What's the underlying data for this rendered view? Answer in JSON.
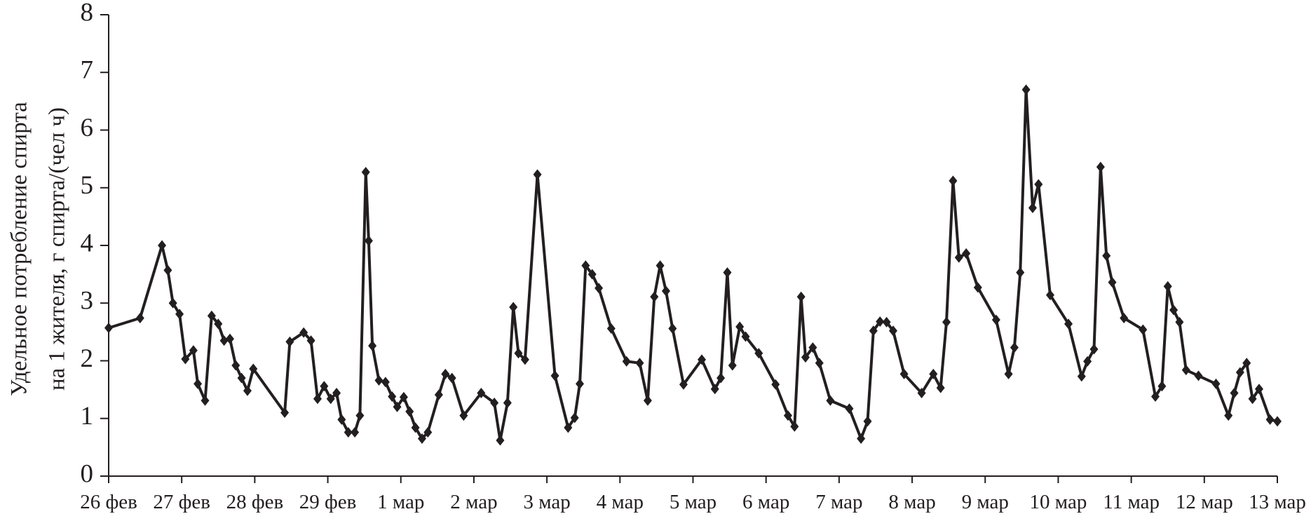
{
  "chart_data": {
    "type": "line",
    "ylabel": [
      "Удельное потребление спирта",
      "на 1 жителя, г спирта/(чел ч)"
    ],
    "xlim": [
      0,
      16
    ],
    "xticks": [
      {
        "value": 0,
        "label": "26 фев"
      },
      {
        "value": 1,
        "label": "27 фев"
      },
      {
        "value": 2,
        "label": "28 фев"
      },
      {
        "value": 3,
        "label": "29 фев"
      },
      {
        "value": 4,
        "label": "1 мар"
      },
      {
        "value": 5,
        "label": "2 мар"
      },
      {
        "value": 6,
        "label": "3 мар"
      },
      {
        "value": 7,
        "label": "4 мар"
      },
      {
        "value": 8,
        "label": "5 мар"
      },
      {
        "value": 9,
        "label": "6 мар"
      },
      {
        "value": 10,
        "label": "7 мар"
      },
      {
        "value": 11,
        "label": "8 мар"
      },
      {
        "value": 12,
        "label": "9 мар"
      },
      {
        "value": 13,
        "label": "10 мар"
      },
      {
        "value": 14,
        "label": "11 мар"
      },
      {
        "value": 15,
        "label": "12 мар"
      },
      {
        "value": 16,
        "label": "13 мар"
      }
    ],
    "ylim": [
      0,
      8
    ],
    "yticks": [
      0,
      1,
      2,
      3,
      4,
      5,
      6,
      7,
      8
    ],
    "series": [
      {
        "color": "#231f20",
        "x": [
          0,
          0.43,
          0.73,
          0.81,
          0.88,
          0.97,
          1.05,
          1.16,
          1.22,
          1.32,
          1.41,
          1.5,
          1.58,
          1.66,
          1.74,
          1.82,
          1.9,
          1.98,
          2.41,
          2.48,
          2.67,
          2.77,
          2.86,
          2.95,
          3.04,
          3.12,
          3.19,
          3.28,
          3.37,
          3.44,
          3.52,
          3.56,
          3.61,
          3.7,
          3.79,
          3.88,
          3.95,
          4.04,
          4.12,
          4.2,
          4.29,
          4.37,
          4.52,
          4.61,
          4.7,
          4.86,
          5.1,
          5.28,
          5.36,
          5.46,
          5.54,
          5.61,
          5.7,
          5.87,
          6.11,
          6.29,
          6.38,
          6.45,
          6.53,
          6.62,
          6.71,
          6.88,
          7.09,
          7.27,
          7.38,
          7.47,
          7.55,
          7.63,
          7.72,
          7.87,
          8.12,
          8.3,
          8.38,
          8.47,
          8.54,
          8.64,
          8.72,
          8.9,
          9.13,
          9.3,
          9.39,
          9.48,
          9.54,
          9.64,
          9.73,
          9.88,
          10.14,
          10.3,
          10.39,
          10.47,
          10.56,
          10.65,
          10.74,
          10.89,
          11.13,
          11.29,
          11.39,
          11.47,
          11.56,
          11.64,
          11.74,
          11.9,
          12.15,
          12.32,
          12.4,
          12.48,
          12.56,
          12.65,
          12.73,
          12.89,
          13.14,
          13.32,
          13.4,
          13.49,
          13.58,
          13.66,
          13.74,
          13.9,
          14.16,
          14.33,
          14.42,
          14.5,
          14.58,
          14.66,
          14.75,
          14.92,
          15.16,
          15.33,
          15.41,
          15.49,
          15.58,
          15.66,
          15.75,
          15.9,
          16
        ],
        "values": [
          2.57,
          2.74,
          4.0,
          3.57,
          3.0,
          2.81,
          2.03,
          2.18,
          1.6,
          1.31,
          2.78,
          2.64,
          2.35,
          2.38,
          1.92,
          1.7,
          1.48,
          1.86,
          1.1,
          2.33,
          2.49,
          2.35,
          1.34,
          1.56,
          1.34,
          1.44,
          0.98,
          0.76,
          0.76,
          1.05,
          5.27,
          4.08,
          2.26,
          1.66,
          1.63,
          1.38,
          1.2,
          1.37,
          1.12,
          0.84,
          0.65,
          0.76,
          1.41,
          1.77,
          1.7,
          1.05,
          1.44,
          1.27,
          0.62,
          1.27,
          2.93,
          2.13,
          2.02,
          5.23,
          1.74,
          0.84,
          1.01,
          1.6,
          3.65,
          3.5,
          3.26,
          2.56,
          1.99,
          1.96,
          1.31,
          3.11,
          3.65,
          3.21,
          2.56,
          1.59,
          2.02,
          1.51,
          1.7,
          3.53,
          1.92,
          2.59,
          2.42,
          2.13,
          1.59,
          1.05,
          0.86,
          3.11,
          2.06,
          2.23,
          1.96,
          1.31,
          1.17,
          0.65,
          0.95,
          2.52,
          2.68,
          2.67,
          2.52,
          1.77,
          1.44,
          1.77,
          1.53,
          2.67,
          5.12,
          3.79,
          3.86,
          3.27,
          2.71,
          1.77,
          2.23,
          3.53,
          6.7,
          4.65,
          5.06,
          3.14,
          2.64,
          1.73,
          1.99,
          2.2,
          5.36,
          3.82,
          3.36,
          2.74,
          2.54,
          1.38,
          1.56,
          3.29,
          2.88,
          2.67,
          1.84,
          1.74,
          1.6,
          1.05,
          1.44,
          1.8,
          1.96,
          1.34,
          1.51,
          0.98,
          0.95
        ]
      }
    ]
  }
}
